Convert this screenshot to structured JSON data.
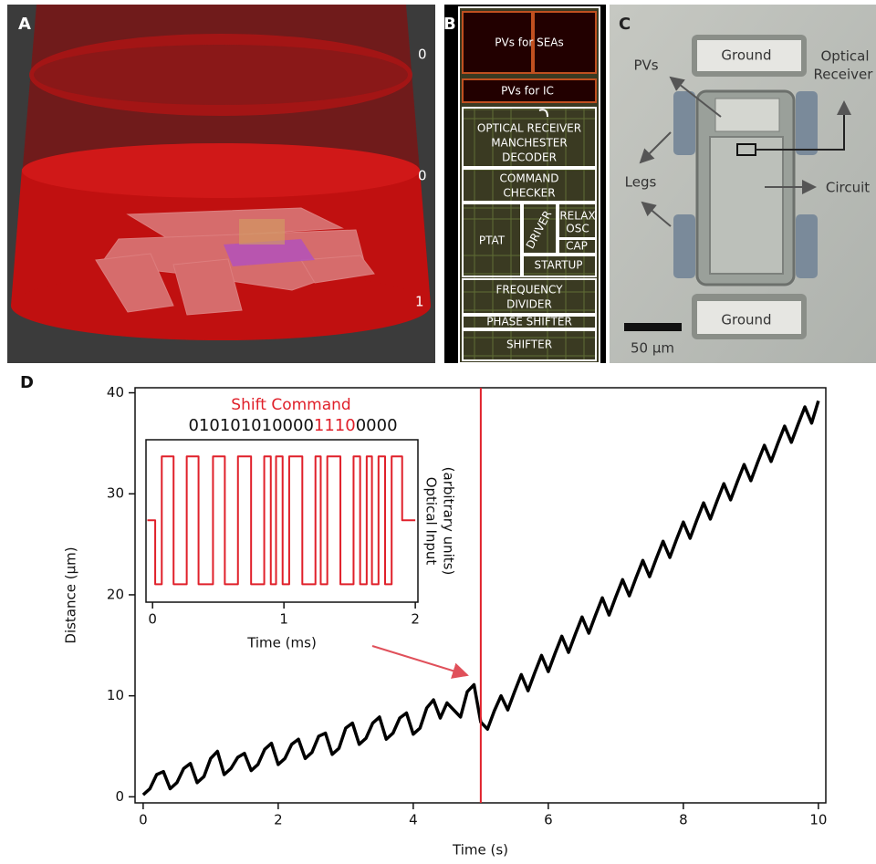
{
  "panel_a": {
    "label": "A",
    "scale_labels": [
      "0",
      "0",
      "1"
    ]
  },
  "panel_b": {
    "label": "B",
    "blocks": [
      "PVs for SEAs",
      "PVs for IC",
      "OPTICAL RECEIVER",
      "MANCHESTER",
      "DECODER",
      "COMMAND",
      "CHECKER",
      "PTAT",
      "DRIVER",
      "RELAX",
      "OSC",
      "CAP",
      "STARTUP",
      "FREQUENCY",
      "DIVIDER",
      "PHASE SHIFTER",
      "SHIFTER"
    ]
  },
  "panel_c": {
    "label": "C",
    "labels": [
      "Ground",
      "Ground",
      "Optical",
      "Receiver",
      "PVs",
      "Legs",
      "Circuit"
    ],
    "scale_bar": "50 μm"
  },
  "panel_d": {
    "label": "D"
  },
  "chart_data": [
    {
      "type": "line",
      "xlabel": "Time (s)",
      "ylabel": "Distance (μm)",
      "xlim": [
        -0.12,
        10.11
      ],
      "ylim": [
        -0.6,
        40.5
      ],
      "xticks": [
        0,
        2,
        4,
        6,
        8,
        10
      ],
      "yticks": [
        0,
        10,
        20,
        30,
        40
      ],
      "vline": 5,
      "vline_color": "#e0202a",
      "x": [
        0.0,
        0.1,
        0.2,
        0.3,
        0.4,
        0.5,
        0.6,
        0.7,
        0.8,
        0.9,
        1.0,
        1.1,
        1.2,
        1.3,
        1.4,
        1.5,
        1.6,
        1.7,
        1.8,
        1.9,
        2.0,
        2.1,
        2.2,
        2.3,
        2.4,
        2.5,
        2.6,
        2.7,
        2.8,
        2.9,
        3.0,
        3.1,
        3.2,
        3.3,
        3.4,
        3.5,
        3.6,
        3.7,
        3.8,
        3.9,
        4.0,
        4.1,
        4.2,
        4.3,
        4.4,
        4.5,
        4.6,
        4.7,
        4.8,
        4.9,
        5.0,
        5.1,
        5.2,
        5.3,
        5.4,
        5.5,
        5.6,
        5.7,
        5.8,
        5.9,
        6.0,
        6.1,
        6.2,
        6.3,
        6.4,
        6.5,
        6.6,
        6.7,
        6.8,
        6.9,
        7.0,
        7.1,
        7.2,
        7.3,
        7.4,
        7.5,
        7.6,
        7.7,
        7.8,
        7.9,
        8.0,
        8.1,
        8.2,
        8.3,
        8.4,
        8.5,
        8.6,
        8.7,
        8.8,
        8.9,
        9.0,
        9.1,
        9.2,
        9.3,
        9.4,
        9.5,
        9.6,
        9.7,
        9.8,
        9.9,
        10.0
      ],
      "series": [
        {
          "color": "#000000",
          "values": [
            0.2,
            0.8,
            2.2,
            2.5,
            0.8,
            1.4,
            2.8,
            3.3,
            1.4,
            2.0,
            3.8,
            4.5,
            2.2,
            2.8,
            3.9,
            4.3,
            2.6,
            3.2,
            4.7,
            5.3,
            3.2,
            3.8,
            5.2,
            5.7,
            3.8,
            4.4,
            6.0,
            6.3,
            4.2,
            4.8,
            6.8,
            7.3,
            5.2,
            5.8,
            7.3,
            7.9,
            5.7,
            6.3,
            7.8,
            8.3,
            6.2,
            6.8,
            8.8,
            9.6,
            7.8,
            9.3,
            8.6,
            7.9,
            10.4,
            11.1,
            7.4,
            6.7,
            8.5,
            10.0,
            8.6,
            10.4,
            12.1,
            10.5,
            12.3,
            14.0,
            12.4,
            14.2,
            15.9,
            14.3,
            16.1,
            17.8,
            16.2,
            18.0,
            19.7,
            18.0,
            19.8,
            21.5,
            19.9,
            21.7,
            23.4,
            21.8,
            23.6,
            25.3,
            23.7,
            25.5,
            27.2,
            25.6,
            27.4,
            29.1,
            27.5,
            29.3,
            31.0,
            29.4,
            31.2,
            32.9,
            31.3,
            33.1,
            34.8,
            33.2,
            35.0,
            36.7,
            35.1,
            36.9,
            38.6,
            37.0,
            39.2
          ]
        }
      ]
    },
    {
      "type": "line",
      "title": "Shift Command",
      "title_color": "#e0202a",
      "command_parts": [
        {
          "text": "010101010000",
          "color": "#111111"
        },
        {
          "text": "1110",
          "color": "#e0202a"
        },
        {
          "text": "0000",
          "color": "#111111"
        }
      ],
      "xlabel": "Time (ms)",
      "ylabel_lines": [
        "Optical Input",
        "(arbitrary units)"
      ],
      "xlim": [
        -0.05,
        2.02
      ],
      "ylim": [
        -0.14,
        1.13
      ],
      "xticks": [
        0,
        1,
        2
      ],
      "x": [
        -0.04,
        0.02,
        0.02,
        0.07,
        0.07,
        0.16,
        0.16,
        0.26,
        0.26,
        0.35,
        0.35,
        0.46,
        0.46,
        0.55,
        0.55,
        0.65,
        0.65,
        0.75,
        0.75,
        0.85,
        0.85,
        0.9,
        0.9,
        0.94,
        0.94,
        0.99,
        0.99,
        1.04,
        1.04,
        1.14,
        1.14,
        1.24,
        1.24,
        1.28,
        1.28,
        1.33,
        1.33,
        1.43,
        1.43,
        1.53,
        1.53,
        1.58,
        1.58,
        1.63,
        1.63,
        1.67,
        1.67,
        1.72,
        1.72,
        1.77,
        1.77,
        1.82,
        1.82,
        1.9,
        1.9,
        2.0
      ],
      "series": [
        {
          "color": "#e0202a",
          "values": [
            0.5,
            0.5,
            0,
            0,
            1,
            1,
            0,
            0,
            1,
            1,
            0,
            0,
            1,
            1,
            0,
            0,
            1,
            1,
            0,
            0,
            1,
            1,
            0,
            0,
            1,
            1,
            0,
            0,
            1,
            1,
            0,
            0,
            1,
            1,
            0,
            0,
            1,
            1,
            0,
            0,
            1,
            1,
            0,
            0,
            1,
            1,
            0,
            0,
            1,
            1,
            0,
            0,
            1,
            1,
            0.5,
            0.5
          ]
        }
      ]
    }
  ]
}
